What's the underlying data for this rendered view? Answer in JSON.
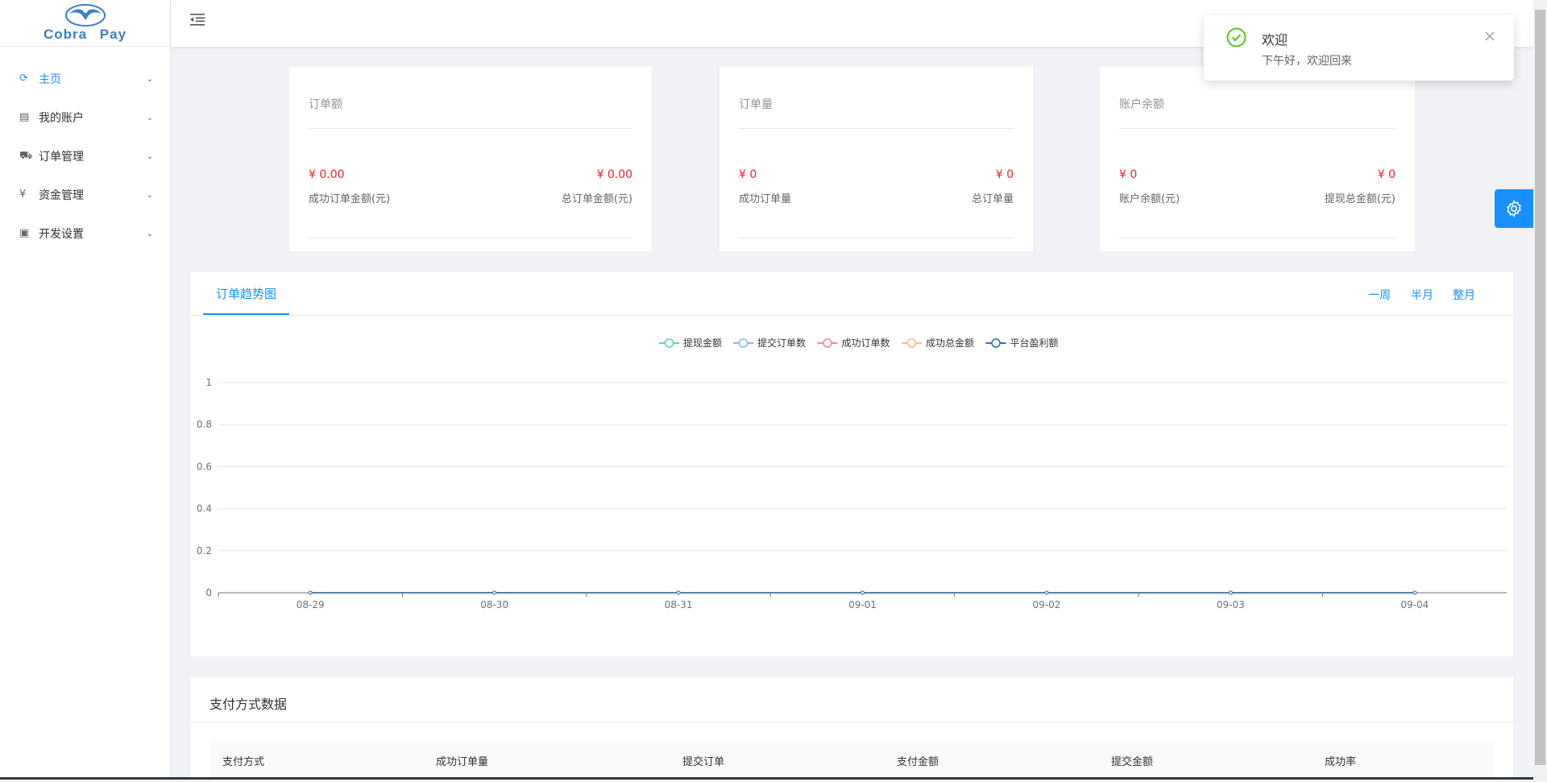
{
  "logo": {
    "text": "Cobra Pay"
  },
  "sidebar": {
    "items": [
      {
        "label": "主页",
        "icon": "dashboard-icon",
        "active": true
      },
      {
        "label": "我的账户",
        "icon": "account-icon"
      },
      {
        "label": "订单管理",
        "icon": "cart-icon"
      },
      {
        "label": "资金管理",
        "icon": "money-icon"
      },
      {
        "label": "开发设置",
        "icon": "terminal-icon"
      }
    ]
  },
  "cards": [
    {
      "title": "订单额",
      "left_value": "¥ 0.00",
      "left_label": "成功订单金额(元)",
      "right_value": "¥ 0.00",
      "right_label": "总订单金额(元)"
    },
    {
      "title": "订单量",
      "left_value": "¥ 0",
      "left_label": "成功订单量",
      "right_value": "¥ 0",
      "right_label": "总订单量"
    },
    {
      "title": "账户余额",
      "left_value": "¥ 0",
      "left_label": "账户余额(元)",
      "right_value": "¥ 0",
      "right_label": "提现总金额(元)"
    }
  ],
  "trend": {
    "tab": "订单趋势图",
    "ranges": [
      "一周",
      "半月",
      "整月"
    ]
  },
  "chart_data": {
    "type": "line",
    "x": [
      "08-29",
      "08-30",
      "08-31",
      "09-01",
      "09-02",
      "09-03",
      "09-04"
    ],
    "ylim": [
      0,
      1
    ],
    "yticks": [
      "0",
      "0.2",
      "0.4",
      "0.6",
      "0.8",
      "1"
    ],
    "grid": true,
    "legend": "top-center",
    "series": [
      {
        "name": "提现金额",
        "color": "#4fd6b8",
        "values": [
          0,
          0,
          0,
          0,
          0,
          0,
          0
        ]
      },
      {
        "name": "提交订单数",
        "color": "#7cbcf2",
        "values": [
          0,
          0,
          0,
          0,
          0,
          0,
          0
        ]
      },
      {
        "name": "成功订单数",
        "color": "#f3899a",
        "values": [
          0,
          0,
          0,
          0,
          0,
          0,
          0
        ]
      },
      {
        "name": "成功总金额",
        "color": "#fdbb8c",
        "values": [
          0,
          0,
          0,
          0,
          0,
          0,
          0
        ]
      },
      {
        "name": "平台盈利额",
        "color": "#2d72ad",
        "values": [
          0,
          0,
          0,
          0,
          0,
          0,
          0
        ]
      }
    ]
  },
  "payment": {
    "title": "支付方式数据",
    "columns": [
      "支付方式",
      "成功订单量",
      "提交订单",
      "支付金额",
      "提交金额",
      "成功率"
    ]
  },
  "notification": {
    "title": "欢迎",
    "message": "下午好，欢迎回来"
  },
  "colors": {
    "accent": "#1890ff",
    "value": "#f5222d",
    "success": "#52c41a"
  }
}
